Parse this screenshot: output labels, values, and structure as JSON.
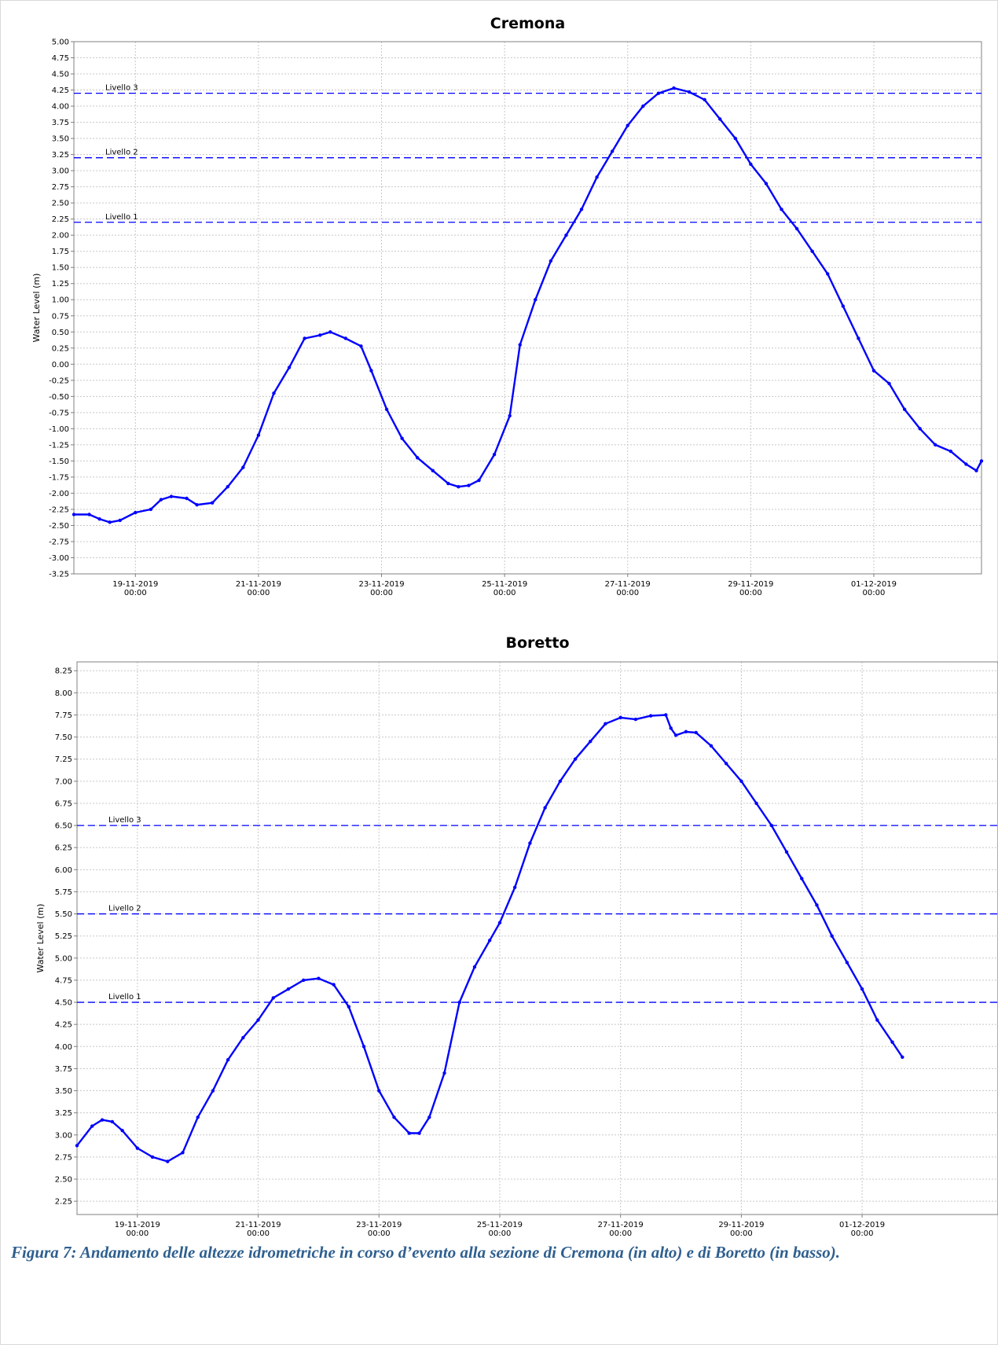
{
  "caption": "Figura 7: Andamento delle altezze idrometriche in corso d’evento alla sezione di Cremona (in alto) e di Boretto (in basso).",
  "colors": {
    "series": "#0000ff",
    "threshold": "#0000ff",
    "grid": "#c8c8c8",
    "axis": "#808080"
  },
  "chart_data": [
    {
      "type": "line",
      "title": "Cremona",
      "xlabel": "",
      "ylabel": "Water Level (m)",
      "grid": true,
      "ylim": [
        -3.25,
        5.0
      ],
      "ytick_step": 0.25,
      "xlim": [
        "2019-11-18T00:00",
        "2019-12-02T18:00"
      ],
      "xticks": [
        {
          "date": "2019-11-19T00:00",
          "label1": "19-11-2019",
          "label2": "00:00"
        },
        {
          "date": "2019-11-21T00:00",
          "label1": "21-11-2019",
          "label2": "00:00"
        },
        {
          "date": "2019-11-23T00:00",
          "label1": "23-11-2019",
          "label2": "00:00"
        },
        {
          "date": "2019-11-25T00:00",
          "label1": "25-11-2019",
          "label2": "00:00"
        },
        {
          "date": "2019-11-27T00:00",
          "label1": "27-11-2019",
          "label2": "00:00"
        },
        {
          "date": "2019-11-29T00:00",
          "label1": "29-11-2019",
          "label2": "00:00"
        },
        {
          "date": "2019-12-01T00:00",
          "label1": "01-12-2019",
          "label2": "00:00"
        }
      ],
      "thresholds": [
        {
          "name": "Livello 1",
          "value": 2.2
        },
        {
          "name": "Livello 2",
          "value": 3.2
        },
        {
          "name": "Livello 3",
          "value": 4.2
        }
      ],
      "series": [
        {
          "values": [
            [
              "2019-11-18T00:00",
              -2.33
            ],
            [
              "2019-11-18T06:00",
              -2.33
            ],
            [
              "2019-11-18T10:00",
              -2.4
            ],
            [
              "2019-11-18T14:00",
              -2.45
            ],
            [
              "2019-11-18T18:00",
              -2.42
            ],
            [
              "2019-11-19T00:00",
              -2.3
            ],
            [
              "2019-11-19T06:00",
              -2.25
            ],
            [
              "2019-11-19T10:00",
              -2.1
            ],
            [
              "2019-11-19T14:00",
              -2.05
            ],
            [
              "2019-11-19T20:00",
              -2.08
            ],
            [
              "2019-11-20T00:00",
              -2.18
            ],
            [
              "2019-11-20T06:00",
              -2.15
            ],
            [
              "2019-11-20T12:00",
              -1.9
            ],
            [
              "2019-11-20T18:00",
              -1.6
            ],
            [
              "2019-11-21T00:00",
              -1.1
            ],
            [
              "2019-11-21T06:00",
              -0.45
            ],
            [
              "2019-11-21T12:00",
              -0.05
            ],
            [
              "2019-11-21T18:00",
              0.4
            ],
            [
              "2019-11-22T00:00",
              0.45
            ],
            [
              "2019-11-22T04:00",
              0.5
            ],
            [
              "2019-11-22T10:00",
              0.4
            ],
            [
              "2019-11-22T16:00",
              0.28
            ],
            [
              "2019-11-22T20:00",
              -0.1
            ],
            [
              "2019-11-23T02:00",
              -0.7
            ],
            [
              "2019-11-23T08:00",
              -1.15
            ],
            [
              "2019-11-23T14:00",
              -1.45
            ],
            [
              "2019-11-23T20:00",
              -1.65
            ],
            [
              "2019-11-24T02:00",
              -1.85
            ],
            [
              "2019-11-24T06:00",
              -1.9
            ],
            [
              "2019-11-24T10:00",
              -1.88
            ],
            [
              "2019-11-24T14:00",
              -1.8
            ],
            [
              "2019-11-24T20:00",
              -1.4
            ],
            [
              "2019-11-25T02:00",
              -0.8
            ],
            [
              "2019-11-25T06:00",
              0.3
            ],
            [
              "2019-11-25T12:00",
              1.0
            ],
            [
              "2019-11-25T18:00",
              1.6
            ],
            [
              "2019-11-26T00:00",
              2.0
            ],
            [
              "2019-11-26T06:00",
              2.4
            ],
            [
              "2019-11-26T12:00",
              2.9
            ],
            [
              "2019-11-26T18:00",
              3.3
            ],
            [
              "2019-11-27T00:00",
              3.7
            ],
            [
              "2019-11-27T06:00",
              4.0
            ],
            [
              "2019-11-27T12:00",
              4.2
            ],
            [
              "2019-11-27T18:00",
              4.28
            ],
            [
              "2019-11-28T00:00",
              4.22
            ],
            [
              "2019-11-28T06:00",
              4.1
            ],
            [
              "2019-11-28T12:00",
              3.8
            ],
            [
              "2019-11-28T18:00",
              3.5
            ],
            [
              "2019-11-29T00:00",
              3.1
            ],
            [
              "2019-11-29T06:00",
              2.8
            ],
            [
              "2019-11-29T12:00",
              2.4
            ],
            [
              "2019-11-29T18:00",
              2.1
            ],
            [
              "2019-11-30T00:00",
              1.75
            ],
            [
              "2019-11-30T06:00",
              1.4
            ],
            [
              "2019-11-30T12:00",
              0.9
            ],
            [
              "2019-11-30T18:00",
              0.4
            ],
            [
              "2019-12-01T00:00",
              -0.1
            ],
            [
              "2019-12-01T06:00",
              -0.3
            ],
            [
              "2019-12-01T12:00",
              -0.7
            ],
            [
              "2019-12-01T18:00",
              -1.0
            ],
            [
              "2019-12-02T00:00",
              -1.25
            ],
            [
              "2019-12-02T06:00",
              -1.35
            ],
            [
              "2019-12-02T12:00",
              -1.55
            ],
            [
              "2019-12-02T16:00",
              -1.65
            ],
            [
              "2019-12-02T18:00",
              -1.5
            ]
          ]
        }
      ]
    },
    {
      "type": "line",
      "title": "Boretto",
      "xlabel": "",
      "ylabel": "Water Level (m)",
      "grid": true,
      "ylim": [
        2.1,
        8.35
      ],
      "ytick_step": 0.25,
      "ytick_min": 2.25,
      "ytick_max": 8.25,
      "xlim": [
        "2019-11-18T00:00",
        "2019-12-03T06:00"
      ],
      "xticks": [
        {
          "date": "2019-11-19T00:00",
          "label1": "19-11-2019",
          "label2": "00:00"
        },
        {
          "date": "2019-11-21T00:00",
          "label1": "21-11-2019",
          "label2": "00:00"
        },
        {
          "date": "2019-11-23T00:00",
          "label1": "23-11-2019",
          "label2": "00:00"
        },
        {
          "date": "2019-11-25T00:00",
          "label1": "25-11-2019",
          "label2": "00:00"
        },
        {
          "date": "2019-11-27T00:00",
          "label1": "27-11-2019",
          "label2": "00:00"
        },
        {
          "date": "2019-11-29T00:00",
          "label1": "29-11-2019",
          "label2": "00:00"
        },
        {
          "date": "2019-12-01T00:00",
          "label1": "01-12-2019",
          "label2": "00:00"
        }
      ],
      "thresholds": [
        {
          "name": "Livello 1",
          "value": 4.5
        },
        {
          "name": "Livello 2",
          "value": 5.5
        },
        {
          "name": "Livello 3",
          "value": 6.5
        }
      ],
      "series": [
        {
          "values": [
            [
              "2019-11-18T00:00",
              2.88
            ],
            [
              "2019-11-18T06:00",
              3.1
            ],
            [
              "2019-11-18T10:00",
              3.17
            ],
            [
              "2019-11-18T14:00",
              3.15
            ],
            [
              "2019-11-18T18:00",
              3.05
            ],
            [
              "2019-11-19T00:00",
              2.85
            ],
            [
              "2019-11-19T06:00",
              2.75
            ],
            [
              "2019-11-19T12:00",
              2.7
            ],
            [
              "2019-11-19T18:00",
              2.8
            ],
            [
              "2019-11-20T00:00",
              3.2
            ],
            [
              "2019-11-20T06:00",
              3.5
            ],
            [
              "2019-11-20T12:00",
              3.85
            ],
            [
              "2019-11-20T18:00",
              4.1
            ],
            [
              "2019-11-21T00:00",
              4.3
            ],
            [
              "2019-11-21T06:00",
              4.55
            ],
            [
              "2019-11-21T12:00",
              4.65
            ],
            [
              "2019-11-21T18:00",
              4.75
            ],
            [
              "2019-11-22T00:00",
              4.77
            ],
            [
              "2019-11-22T06:00",
              4.7
            ],
            [
              "2019-11-22T12:00",
              4.45
            ],
            [
              "2019-11-22T18:00",
              4.0
            ],
            [
              "2019-11-23T00:00",
              3.5
            ],
            [
              "2019-11-23T06:00",
              3.2
            ],
            [
              "2019-11-23T12:00",
              3.02
            ],
            [
              "2019-11-23T16:00",
              3.02
            ],
            [
              "2019-11-23T20:00",
              3.2
            ],
            [
              "2019-11-24T02:00",
              3.7
            ],
            [
              "2019-11-24T08:00",
              4.5
            ],
            [
              "2019-11-24T14:00",
              4.9
            ],
            [
              "2019-11-24T20:00",
              5.2
            ],
            [
              "2019-11-25T00:00",
              5.4
            ],
            [
              "2019-11-25T06:00",
              5.8
            ],
            [
              "2019-11-25T12:00",
              6.3
            ],
            [
              "2019-11-25T18:00",
              6.7
            ],
            [
              "2019-11-26T00:00",
              7.0
            ],
            [
              "2019-11-26T06:00",
              7.25
            ],
            [
              "2019-11-26T12:00",
              7.45
            ],
            [
              "2019-11-26T18:00",
              7.65
            ],
            [
              "2019-11-27T00:00",
              7.72
            ],
            [
              "2019-11-27T06:00",
              7.7
            ],
            [
              "2019-11-27T12:00",
              7.74
            ],
            [
              "2019-11-27T18:00",
              7.75
            ],
            [
              "2019-11-27T20:00",
              7.6
            ],
            [
              "2019-11-27T22:00",
              7.52
            ],
            [
              "2019-11-28T02:00",
              7.56
            ],
            [
              "2019-11-28T06:00",
              7.55
            ],
            [
              "2019-11-28T12:00",
              7.4
            ],
            [
              "2019-11-28T18:00",
              7.2
            ],
            [
              "2019-11-29T00:00",
              7.0
            ],
            [
              "2019-11-29T06:00",
              6.75
            ],
            [
              "2019-11-29T12:00",
              6.5
            ],
            [
              "2019-11-29T18:00",
              6.2
            ],
            [
              "2019-11-30T00:00",
              5.9
            ],
            [
              "2019-11-30T06:00",
              5.6
            ],
            [
              "2019-11-30T12:00",
              5.25
            ],
            [
              "2019-11-30T18:00",
              4.95
            ],
            [
              "2019-12-01T00:00",
              4.65
            ],
            [
              "2019-12-01T06:00",
              4.3
            ],
            [
              "2019-12-01T12:00",
              4.05
            ],
            [
              "2019-12-01T16:00",
              3.88
            ]
          ]
        }
      ]
    }
  ]
}
